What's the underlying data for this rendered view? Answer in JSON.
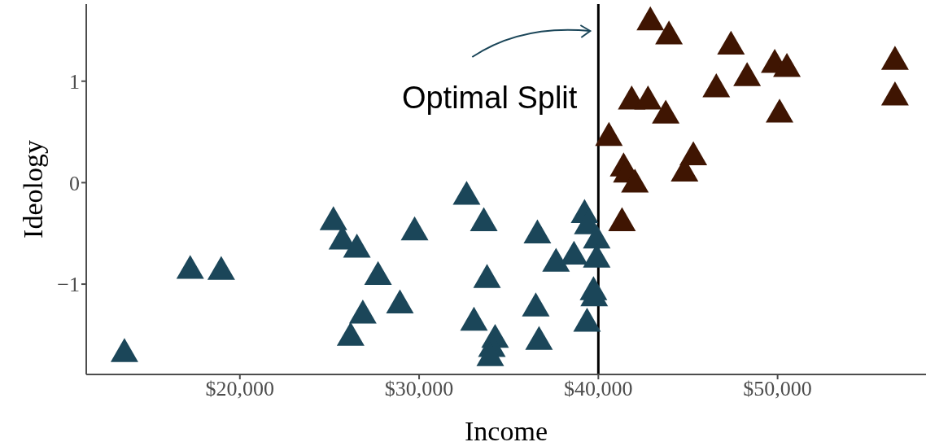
{
  "chart_data": {
    "type": "scatter",
    "xlabel": "Income",
    "ylabel": "Ideology",
    "marker": "triangle",
    "grid": false,
    "legend": false,
    "xlim": [
      11430,
      58280
    ],
    "ylim": [
      -1.89,
      1.76
    ],
    "xticks": [
      {
        "value": 20000,
        "label": "$20,000"
      },
      {
        "value": 30000,
        "label": "$30,000"
      },
      {
        "value": 40000,
        "label": "$40,000"
      },
      {
        "value": 50000,
        "label": "$50,000"
      }
    ],
    "yticks": [
      {
        "value": -1,
        "label": "−1"
      },
      0,
      1
    ],
    "ref_lines": [
      {
        "axis": "x",
        "value": 40000,
        "label": null,
        "color": "#000000",
        "line_style": "solid"
      }
    ],
    "annotations": [
      "Optimal Split"
    ],
    "series": [
      {
        "color": "#1b4659",
        "x": [
          13560,
          17230,
          18960,
          25220,
          25720,
          26530,
          27710,
          29750,
          26860,
          26180,
          28930,
          32650,
          33610,
          33790,
          33060,
          34240,
          34060,
          33970,
          36600,
          37640,
          38640,
          39230,
          39410,
          39910,
          39910,
          39730,
          39770,
          36510,
          36690,
          39370
        ],
        "values": [
          -1.65,
          -0.83,
          -0.84,
          -0.35,
          -0.54,
          -0.62,
          -0.89,
          -0.45,
          -1.27,
          -1.49,
          -1.17,
          -0.1,
          -0.36,
          -0.92,
          -1.34,
          -1.51,
          -1.6,
          -1.69,
          -0.48,
          -0.76,
          -0.69,
          -0.28,
          -0.39,
          -0.53,
          -0.72,
          -1.04,
          -1.1,
          -1.2,
          -1.53,
          -1.35
        ]
      },
      {
        "color": "#3f1502",
        "x": [
          40590,
          41410,
          41590,
          42040,
          41320,
          41860,
          42770,
          42900,
          43940,
          43760,
          45300,
          44810,
          46580,
          47400,
          48300,
          49840,
          50520,
          50110,
          56550,
          56550
        ],
        "values": [
          0.48,
          0.18,
          0.12,
          0.02,
          -0.36,
          0.84,
          0.84,
          1.62,
          1.48,
          0.7,
          0.29,
          0.13,
          0.96,
          1.38,
          1.07,
          1.2,
          1.16,
          0.71,
          1.23,
          0.88
        ]
      }
    ]
  }
}
